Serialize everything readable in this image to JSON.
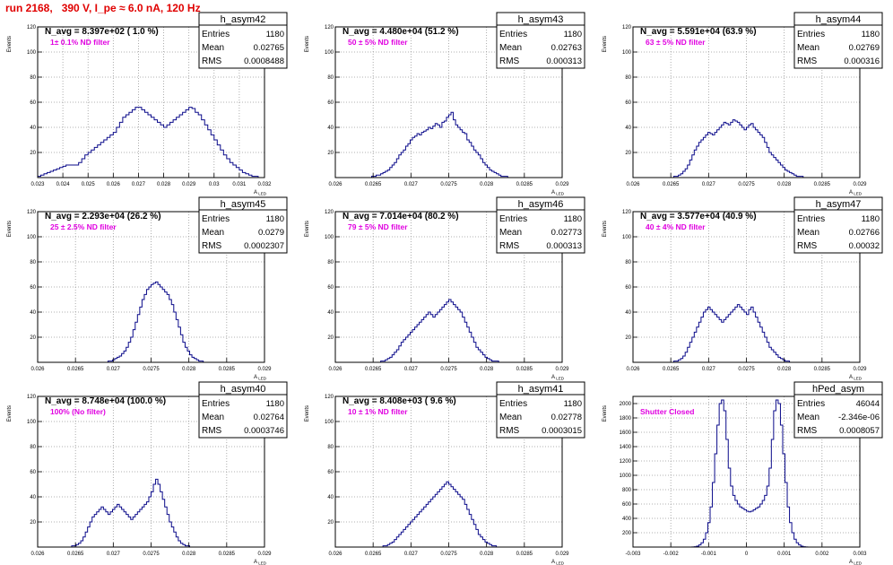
{
  "page": {
    "title": "run 2168,   390 V, I_pe ≈ 6.0 nA, 120 Hz",
    "xaxis_title": "A",
    "xaxis_subscript": "LED",
    "yaxis_title": "Events",
    "stat_labels": {
      "entries": "Entries",
      "mean": "Mean",
      "rms": "RMS"
    }
  },
  "chart_data": [
    {
      "type": "bar",
      "name": "h_asym42",
      "entries": "1180",
      "mean": "0.02765",
      "rms": "0.0008488",
      "navg": "N_avg = 8.397e+02 ( 1.0 %)",
      "annotation": "1± 0.1% ND filter",
      "xlim": [
        0.023,
        0.032
      ],
      "ylim": [
        0,
        120
      ],
      "xticks": [
        "0.023",
        "0.024",
        "0.025",
        "0.026",
        "0.027",
        "0.028",
        "0.029",
        "0.03",
        "0.031",
        "0.032"
      ],
      "yticks": [
        "20",
        "40",
        "60",
        "80",
        "100",
        "120"
      ],
      "bins": [
        0.026,
        0.0263,
        0.0266,
        0.0269,
        0.0272,
        0.0275,
        0.0278,
        0.0281,
        0.0284,
        0.0287,
        0.029,
        0.0293
      ],
      "values": [
        [
          1,
          2,
          3,
          4,
          5,
          6,
          7,
          8,
          9,
          10,
          10,
          10
        ],
        [
          10,
          12,
          15,
          18,
          20,
          22,
          24,
          26,
          28,
          30,
          32,
          34
        ],
        [
          36,
          40,
          44,
          48,
          50,
          52,
          54,
          56,
          56,
          54,
          52,
          50
        ],
        [
          48,
          46,
          44,
          42,
          40,
          42,
          44,
          46,
          48,
          50,
          52,
          54
        ],
        [
          56,
          55,
          52,
          50,
          46,
          42,
          38,
          34,
          30,
          26,
          22,
          18
        ],
        [
          15,
          12,
          10,
          8,
          6,
          4,
          3,
          2,
          1,
          1,
          0,
          0
        ]
      ]
    },
    {
      "type": "bar",
      "name": "h_asym43",
      "entries": "1180",
      "mean": "0.02763",
      "rms": "0.000313",
      "navg": "N_avg = 4.480e+04 (51.2 %)",
      "annotation": "50 ± 5% ND filter",
      "xlim": [
        0.026,
        0.029
      ],
      "ylim": [
        0,
        120
      ],
      "xticks": [
        "0.026",
        "0.0265",
        "0.027",
        "0.0275",
        "0.028",
        "0.0285",
        "0.029"
      ],
      "yticks": [
        "20",
        "40",
        "60",
        "80",
        "100",
        "120"
      ],
      "values": [
        0,
        0,
        0,
        0,
        0,
        0,
        0,
        0,
        0,
        0,
        0,
        0,
        0,
        0,
        0,
        0,
        1,
        1,
        2,
        2,
        3,
        4,
        5,
        6,
        8,
        10,
        12,
        15,
        18,
        20,
        22,
        25,
        27,
        30,
        32,
        33,
        35,
        34,
        36,
        37,
        38,
        40,
        39,
        41,
        43,
        42,
        40,
        44,
        45,
        48,
        50,
        52,
        46,
        42,
        40,
        38,
        36,
        35,
        30,
        28,
        25,
        22,
        20,
        18,
        15,
        12,
        10,
        8,
        6,
        5,
        4,
        3,
        2,
        1,
        1,
        1,
        0,
        0,
        0,
        0,
        0,
        0,
        0,
        0,
        0,
        0,
        0,
        0,
        0,
        0,
        0,
        0,
        0,
        0,
        0,
        0,
        0,
        0,
        0,
        0
      ]
    },
    {
      "type": "bar",
      "name": "h_asym44",
      "entries": "1180",
      "mean": "0.02769",
      "rms": "0.000316",
      "navg": "N_avg = 5.591e+04 (63.9 %)",
      "annotation": "63 ± 5% ND filter",
      "xlim": [
        0.026,
        0.029
      ],
      "ylim": [
        0,
        120
      ],
      "xticks": [
        "0.026",
        "0.0265",
        "0.027",
        "0.0275",
        "0.028",
        "0.0285",
        "0.029"
      ],
      "yticks": [
        "20",
        "40",
        "60",
        "80",
        "100",
        "120"
      ],
      "values": [
        0,
        0,
        0,
        0,
        0,
        0,
        0,
        0,
        0,
        0,
        0,
        0,
        0,
        0,
        0,
        0,
        0,
        0,
        1,
        1,
        2,
        3,
        5,
        7,
        10,
        14,
        18,
        22,
        25,
        28,
        30,
        32,
        34,
        36,
        35,
        34,
        36,
        38,
        40,
        42,
        44,
        43,
        42,
        44,
        46,
        45,
        44,
        42,
        40,
        38,
        40,
        42,
        43,
        40,
        38,
        36,
        34,
        32,
        28,
        24,
        20,
        18,
        16,
        14,
        12,
        10,
        8,
        6,
        5,
        4,
        3,
        2,
        1,
        1,
        1,
        0,
        0,
        0,
        0,
        0,
        0,
        0,
        0,
        0,
        0,
        0,
        0,
        0,
        0,
        0,
        0,
        0,
        0,
        0,
        0,
        0,
        0,
        0,
        0,
        0
      ]
    },
    {
      "type": "bar",
      "name": "h_asym45",
      "entries": "1180",
      "mean": "0.0279",
      "rms": "0.0002307",
      "navg": "N_avg = 2.293e+04 (26.2 %)",
      "annotation": "25 ± 2.5% ND filter",
      "xlim": [
        0.026,
        0.029
      ],
      "ylim": [
        0,
        120
      ],
      "xticks": [
        "0.026",
        "0.0265",
        "0.027",
        "0.0275",
        "0.028",
        "0.0285",
        "0.029"
      ],
      "yticks": [
        "20",
        "40",
        "60",
        "80",
        "100",
        "120"
      ],
      "values": [
        0,
        0,
        0,
        0,
        0,
        0,
        0,
        0,
        0,
        0,
        0,
        0,
        0,
        0,
        0,
        0,
        0,
        0,
        0,
        0,
        0,
        0,
        0,
        0,
        0,
        0,
        0,
        0,
        0,
        0,
        0,
        1,
        1,
        2,
        3,
        4,
        5,
        7,
        9,
        12,
        16,
        20,
        26,
        32,
        38,
        44,
        50,
        54,
        58,
        60,
        62,
        63,
        64,
        62,
        60,
        58,
        56,
        54,
        50,
        46,
        40,
        34,
        28,
        22,
        16,
        12,
        9,
        6,
        4,
        3,
        2,
        1,
        1,
        0,
        0,
        0,
        0,
        0,
        0,
        0,
        0,
        0,
        0,
        0,
        0,
        0,
        0,
        0,
        0,
        0,
        0,
        0,
        0,
        0,
        0,
        0,
        0,
        0,
        0,
        0
      ]
    },
    {
      "type": "bar",
      "name": "h_asym46",
      "entries": "1180",
      "mean": "0.02773",
      "rms": "0.000313",
      "navg": "N_avg = 7.014e+04 (80.2 %)",
      "annotation": "79 ± 5% ND filter",
      "xlim": [
        0.026,
        0.029
      ],
      "ylim": [
        0,
        120
      ],
      "xticks": [
        "0.026",
        "0.0265",
        "0.027",
        "0.0275",
        "0.028",
        "0.0285",
        "0.029"
      ],
      "yticks": [
        "20",
        "40",
        "60",
        "80",
        "100",
        "120"
      ],
      "values": [
        0,
        0,
        0,
        0,
        0,
        0,
        0,
        0,
        0,
        0,
        0,
        0,
        0,
        0,
        0,
        0,
        0,
        0,
        0,
        0,
        1,
        1,
        2,
        3,
        4,
        6,
        8,
        10,
        13,
        16,
        18,
        20,
        22,
        24,
        26,
        28,
        30,
        32,
        34,
        36,
        38,
        40,
        38,
        36,
        38,
        40,
        42,
        44,
        46,
        48,
        50,
        48,
        46,
        44,
        42,
        40,
        36,
        32,
        28,
        24,
        20,
        16,
        12,
        10,
        8,
        6,
        4,
        3,
        2,
        1,
        1,
        1,
        0,
        0,
        0,
        0,
        0,
        0,
        0,
        0,
        0,
        0,
        0,
        0,
        0,
        0,
        0,
        0,
        0,
        0,
        0,
        0,
        0,
        0,
        0,
        0,
        0,
        0,
        0,
        0
      ]
    },
    {
      "type": "bar",
      "name": "h_asym47",
      "entries": "1180",
      "mean": "0.02766",
      "rms": "0.00032",
      "navg": "N_avg = 3.577e+04 (40.9 %)",
      "annotation": "40 ± 4% ND filter",
      "xlim": [
        0.026,
        0.029
      ],
      "ylim": [
        0,
        120
      ],
      "xticks": [
        "0.026",
        "0.0265",
        "0.027",
        "0.0275",
        "0.028",
        "0.0285",
        "0.029"
      ],
      "yticks": [
        "20",
        "40",
        "60",
        "80",
        "100",
        "120"
      ],
      "values": [
        0,
        0,
        0,
        0,
        0,
        0,
        0,
        0,
        0,
        0,
        0,
        0,
        0,
        0,
        0,
        0,
        0,
        0,
        1,
        1,
        2,
        3,
        5,
        8,
        12,
        16,
        20,
        24,
        28,
        32,
        36,
        40,
        42,
        44,
        42,
        40,
        38,
        36,
        34,
        32,
        34,
        36,
        38,
        40,
        42,
        44,
        46,
        44,
        42,
        40,
        38,
        42,
        44,
        40,
        36,
        32,
        28,
        24,
        20,
        16,
        12,
        10,
        8,
        6,
        4,
        3,
        2,
        1,
        1,
        0,
        0,
        0,
        0,
        0,
        0,
        0,
        0,
        0,
        0,
        0,
        0,
        0,
        0,
        0,
        0,
        0,
        0,
        0,
        0,
        0,
        0,
        0,
        0,
        0,
        0,
        0,
        0,
        0,
        0,
        0
      ]
    },
    {
      "type": "bar",
      "name": "h_asym40",
      "entries": "1180",
      "mean": "0.02764",
      "rms": "0.0003746",
      "navg": "N_avg = 8.748e+04 (100.0 %)",
      "annotation": "100% (No filter)",
      "xlim": [
        0.026,
        0.029
      ],
      "ylim": [
        0,
        120
      ],
      "xticks": [
        "0.026",
        "0.0265",
        "0.027",
        "0.0275",
        "0.028",
        "0.0285",
        "0.029"
      ],
      "yticks": [
        "20",
        "40",
        "60",
        "80",
        "100",
        "120"
      ],
      "values": [
        0,
        0,
        0,
        0,
        0,
        0,
        0,
        0,
        0,
        0,
        0,
        0,
        0,
        0,
        0,
        1,
        1,
        2,
        3,
        5,
        8,
        12,
        16,
        20,
        24,
        26,
        28,
        30,
        32,
        30,
        28,
        26,
        28,
        30,
        32,
        34,
        32,
        30,
        28,
        26,
        24,
        22,
        24,
        26,
        28,
        30,
        32,
        34,
        36,
        40,
        44,
        50,
        54,
        50,
        44,
        38,
        32,
        26,
        20,
        16,
        12,
        8,
        5,
        3,
        2,
        1,
        1,
        0,
        0,
        0,
        0,
        0,
        0,
        0,
        0,
        0,
        0,
        0,
        0,
        0,
        0,
        0,
        0,
        0,
        0,
        0,
        0,
        0,
        0,
        0,
        0,
        0,
        0,
        0,
        0,
        0,
        0,
        0,
        0,
        0
      ]
    },
    {
      "type": "bar",
      "name": "h_asym41",
      "entries": "1180",
      "mean": "0.02778",
      "rms": "0.0003015",
      "navg": "N_avg = 8.408e+03 ( 9.6 %)",
      "annotation": "10 ± 1% ND filter",
      "xlim": [
        0.026,
        0.029
      ],
      "ylim": [
        0,
        120
      ],
      "xticks": [
        "0.026",
        "0.0265",
        "0.027",
        "0.0275",
        "0.028",
        "0.0285",
        "0.029"
      ],
      "yticks": [
        "20",
        "40",
        "60",
        "80",
        "100",
        "120"
      ],
      "values": [
        0,
        0,
        0,
        0,
        0,
        0,
        0,
        0,
        0,
        0,
        0,
        0,
        0,
        0,
        0,
        0,
        0,
        0,
        0,
        0,
        0,
        1,
        1,
        2,
        3,
        4,
        6,
        8,
        10,
        12,
        14,
        16,
        18,
        20,
        22,
        24,
        26,
        28,
        30,
        32,
        34,
        36,
        38,
        40,
        42,
        44,
        46,
        48,
        50,
        52,
        50,
        48,
        46,
        44,
        42,
        40,
        38,
        34,
        30,
        26,
        22,
        18,
        14,
        10,
        8,
        6,
        4,
        3,
        2,
        1,
        1,
        0,
        0,
        0,
        0,
        0,
        0,
        0,
        0,
        0,
        0,
        0,
        0,
        0,
        0,
        0,
        0,
        0,
        0,
        0,
        0,
        0,
        0,
        0,
        0,
        0,
        0,
        0,
        0,
        0
      ]
    },
    {
      "type": "bar",
      "name": "hPed_asym",
      "entries": "46044",
      "mean": "-2.346e-06",
      "rms": "0.0008057",
      "navg": "",
      "annotation": "Shutter Closed",
      "xlim": [
        -0.003,
        0.003
      ],
      "ylim": [
        0,
        2100
      ],
      "xticks": [
        "-0.003",
        "-0.002",
        "-0.001",
        "0",
        "0.001",
        "0.002",
        "0.003"
      ],
      "yticks": [
        "200",
        "400",
        "600",
        "800",
        "1000",
        "1200",
        "1400",
        "1600",
        "1800",
        "2000"
      ],
      "values": [
        0,
        0,
        0,
        0,
        0,
        0,
        0,
        0,
        0,
        0,
        0,
        0,
        0,
        0,
        0,
        0,
        0,
        0,
        0,
        0,
        0,
        0,
        0,
        0,
        0,
        0,
        2,
        5,
        12,
        30,
        60,
        110,
        200,
        340,
        560,
        900,
        1300,
        1700,
        2000,
        2050,
        1900,
        1500,
        1100,
        850,
        720,
        650,
        600,
        560,
        540,
        520,
        500,
        490,
        500,
        520,
        540,
        560,
        600,
        650,
        720,
        850,
        1100,
        1500,
        1900,
        2050,
        2000,
        1700,
        1300,
        900,
        560,
        340,
        200,
        110,
        60,
        30,
        12,
        5,
        2,
        0,
        0,
        0,
        0,
        0,
        0,
        0,
        0,
        0,
        0,
        0,
        0,
        0,
        0,
        0,
        0,
        0,
        0,
        0,
        0,
        0,
        0,
        0
      ]
    }
  ]
}
